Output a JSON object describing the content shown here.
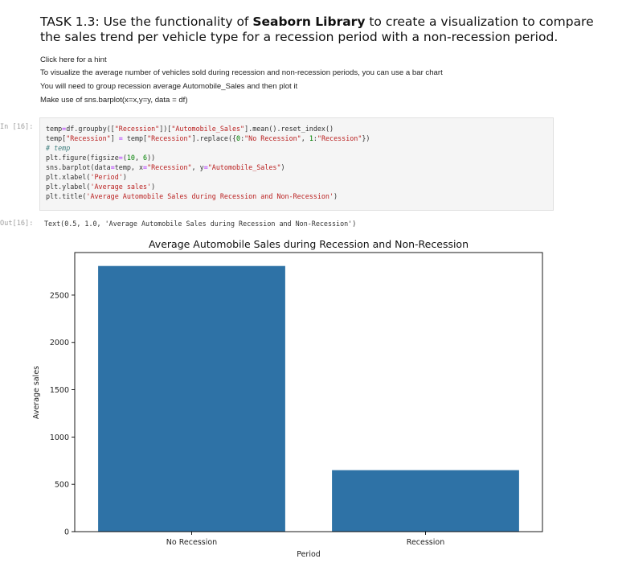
{
  "markdown": {
    "title_prefix": "TASK 1.3: Use the functionality of ",
    "title_bold": "Seaborn Library",
    "title_suffix": " to create a visualization to compare the sales trend per vehicle type for a recession period with a non-recession period.",
    "hint_link": "Click here for a hint",
    "hint_lines": [
      "To visualize the average number of vehicles sold during recession and non-recession periods, you can use a bar chart",
      "You will need to group recession average Automobile_Sales and then plot it",
      "Make use of sns.barplot(x=x,y=y, data = df)"
    ]
  },
  "cell": {
    "in_prompt": "In [16]:",
    "out_prompt": "Out[16]:",
    "output_text": "Text(0.5, 1.0, 'Average Automobile Sales during Recession and Non-Recession')"
  },
  "code_lines": [
    "temp=df.groupby([\"Recession\"])[\"Automobile_Sales\"].mean().reset_index()",
    "temp[\"Recession\"] = temp[\"Recession\"].replace({0:\"No Recession\", 1:\"Recession\"})",
    "# temp",
    "plt.figure(figsize=(10, 6))",
    "sns.barplot(data=temp, x=\"Recession\", y=\"Automobile_Sales\")",
    "plt.xlabel('Period')",
    "plt.ylabel('Average sales')",
    "plt.title('Average Automobile Sales during Recession and Non-Recession')"
  ],
  "chart_data": {
    "type": "bar",
    "title": "Average Automobile Sales during Recession and Non-Recession",
    "xlabel": "Period",
    "ylabel": "Average sales",
    "categories": [
      "No Recession",
      "Recession"
    ],
    "values": [
      2808,
      650
    ],
    "ylim": [
      0,
      2950
    ],
    "yticks": [
      0,
      500,
      1000,
      1500,
      2000,
      2500
    ],
    "bar_color": "#2e72a6",
    "grid": false
  }
}
